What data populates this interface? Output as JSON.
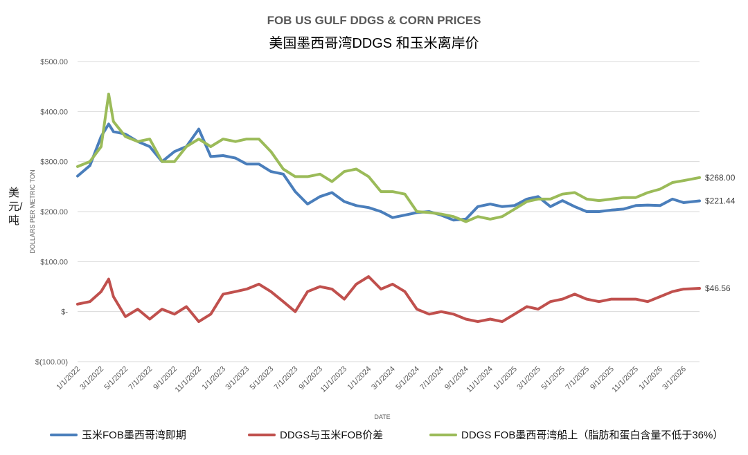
{
  "title": "FOB US GULF DDGS & CORN PRICES",
  "subtitle": "美国墨西哥湾DDGS 和玉米离岸价",
  "side_label": "美元/吨",
  "chart_data": {
    "type": "line",
    "title": "FOB US GULF DDGS & CORN PRICES",
    "subtitle": "美国墨西哥湾DDGS 和玉米离岸价",
    "xlabel": "DATE",
    "ylabel": "DOLLARS PER METRIC TON",
    "ylim": [
      -100,
      500
    ],
    "yticks": [
      500,
      400,
      300,
      200,
      100,
      0,
      -100
    ],
    "ytick_labels": [
      "$500.00",
      "$400.00",
      "$300.00",
      "$200.00",
      "$100.00",
      "$-",
      "$(100.00)"
    ],
    "xlim": [
      "2022-01-01",
      "2026-04-10"
    ],
    "xtick_labels": [
      "1/1/2022",
      "3/1/2022",
      "5/1/2022",
      "7/1/2022",
      "9/1/2022",
      "11/1/2022",
      "1/1/2023",
      "3/1/2023",
      "5/1/2023",
      "7/1/2023",
      "9/1/2023",
      "11/1/2023",
      "1/1/2024",
      "3/1/2024",
      "5/1/2024",
      "7/1/2024",
      "9/1/2024",
      "11/1/2024",
      "1/1/2025",
      "3/1/2025",
      "5/1/2025",
      "7/1/2025",
      "9/1/2025",
      "11/1/2025",
      "1/1/2026",
      "3/1/2026"
    ],
    "grid": true,
    "legend": "bottom",
    "x": [
      "2022-01-01",
      "2022-02-01",
      "2022-03-01",
      "2022-03-20",
      "2022-04-01",
      "2022-05-01",
      "2022-06-01",
      "2022-07-01",
      "2022-08-01",
      "2022-09-01",
      "2022-10-01",
      "2022-11-01",
      "2022-12-01",
      "2023-01-01",
      "2023-02-01",
      "2023-03-01",
      "2023-04-01",
      "2023-05-01",
      "2023-06-01",
      "2023-07-01",
      "2023-08-01",
      "2023-09-01",
      "2023-10-01",
      "2023-11-01",
      "2023-12-01",
      "2024-01-01",
      "2024-02-01",
      "2024-03-01",
      "2024-04-01",
      "2024-05-01",
      "2024-06-01",
      "2024-07-01",
      "2024-08-01",
      "2024-09-01",
      "2024-10-01",
      "2024-11-01",
      "2024-12-01",
      "2025-01-01",
      "2025-02-01",
      "2025-03-01",
      "2025-04-01",
      "2025-05-01",
      "2025-06-01",
      "2025-07-01",
      "2025-08-01",
      "2025-09-01",
      "2025-10-01",
      "2025-11-01",
      "2025-12-01",
      "2026-01-01",
      "2026-02-01",
      "2026-03-01",
      "2026-04-10"
    ],
    "series": [
      {
        "name": "玉米FOB墨西哥湾即期",
        "color": "#4a7ebb",
        "values": [
          271,
          292,
          350,
          375,
          360,
          355,
          340,
          330,
          300,
          320,
          330,
          365,
          310,
          312,
          307,
          295,
          295,
          280,
          275,
          240,
          215,
          230,
          238,
          220,
          212,
          208,
          200,
          188,
          193,
          198,
          200,
          193,
          183,
          185,
          210,
          215,
          210,
          212,
          225,
          230,
          210,
          222,
          210,
          200,
          200,
          203,
          205,
          212,
          213,
          212,
          225,
          218,
          221.44
        ],
        "end_label": "$221.44"
      },
      {
        "name": "DDGS与玉米FOB价差",
        "color": "#c0504d",
        "values": [
          15,
          20,
          40,
          65,
          30,
          -10,
          5,
          -15,
          5,
          -5,
          10,
          -20,
          -5,
          35,
          40,
          45,
          55,
          40,
          20,
          0,
          40,
          50,
          45,
          25,
          55,
          70,
          45,
          55,
          40,
          5,
          -5,
          0,
          -5,
          -15,
          -20,
          -15,
          -20,
          -5,
          10,
          5,
          20,
          25,
          35,
          25,
          20,
          25,
          25,
          25,
          20,
          30,
          40,
          45,
          46.56
        ],
        "end_label": "$46.56"
      },
      {
        "name": "DDGS FOB墨西哥湾船上（脂肪和蛋白含量不低于36%）",
        "color": "#9bbb59",
        "values": [
          290,
          300,
          330,
          435,
          380,
          350,
          340,
          345,
          300,
          300,
          330,
          345,
          330,
          345,
          340,
          345,
          345,
          320,
          285,
          270,
          270,
          275,
          260,
          280,
          285,
          270,
          240,
          240,
          235,
          200,
          198,
          195,
          190,
          180,
          190,
          185,
          190,
          205,
          220,
          225,
          225,
          235,
          238,
          225,
          222,
          225,
          228,
          228,
          238,
          245,
          258,
          262,
          268
        ],
        "end_label": "$268.00"
      }
    ]
  }
}
